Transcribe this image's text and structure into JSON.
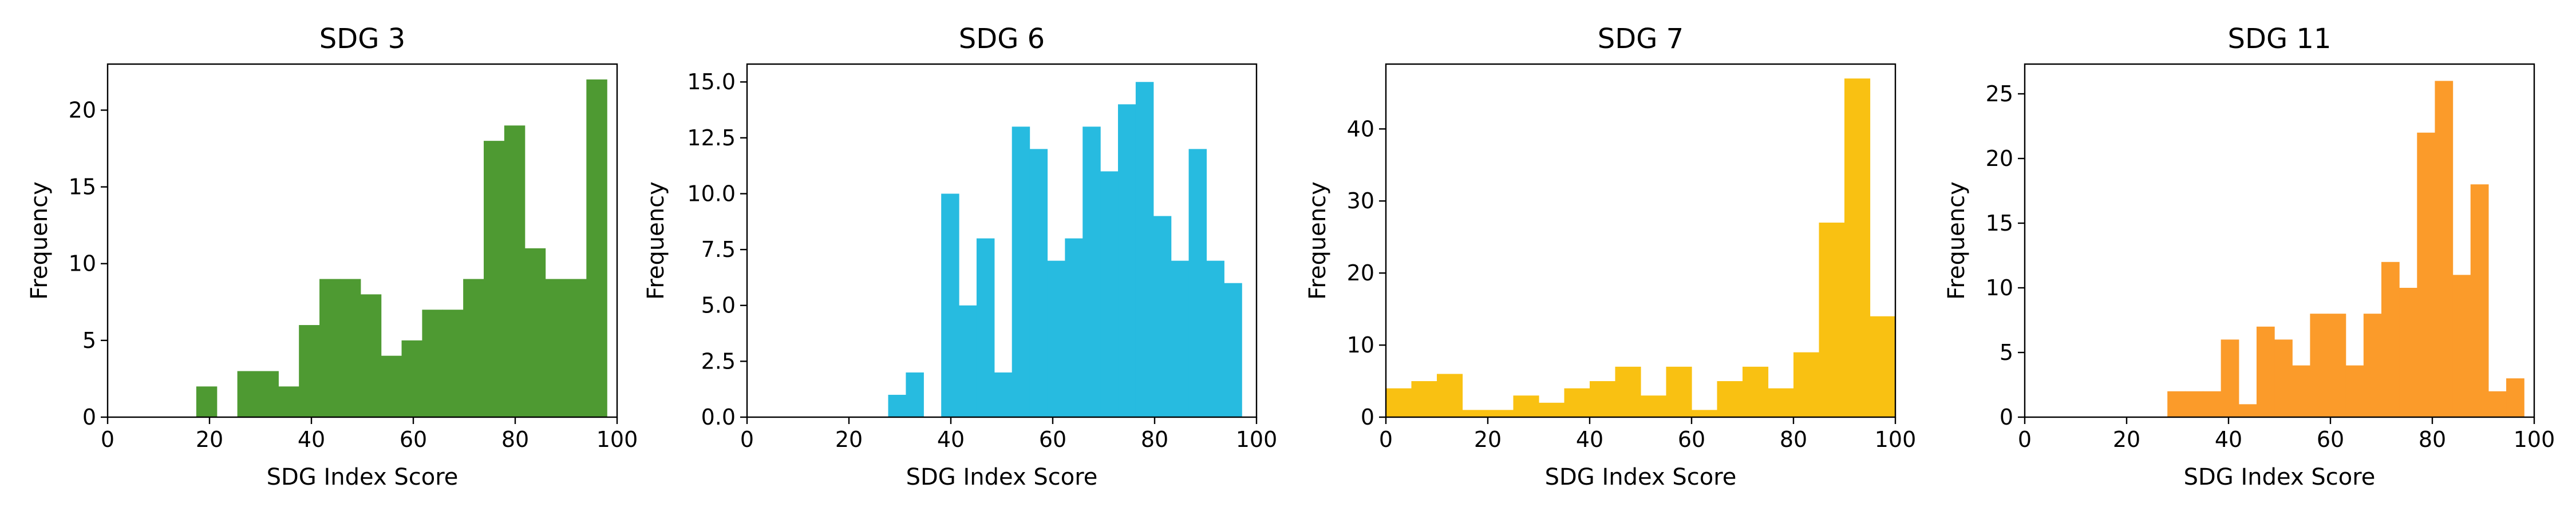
{
  "chart_data": [
    {
      "type": "bar",
      "title": "SDG 3",
      "xlabel": "SDG Index Score",
      "ylabel": "Frequency",
      "xlim": [
        0,
        100
      ],
      "ylim": [
        0,
        23
      ],
      "xticks": [
        0,
        20,
        40,
        60,
        80,
        100
      ],
      "yticks": [
        0,
        5,
        10,
        15,
        20
      ],
      "ytick_labels": [
        "0",
        "5",
        "10",
        "15",
        "20"
      ],
      "color": "#4e9a32",
      "bin_edges": [
        17.4,
        21.43,
        25.46,
        29.49,
        33.52,
        37.55,
        41.58,
        45.61,
        49.64,
        53.67,
        57.7,
        61.73,
        65.76,
        69.79,
        73.82,
        77.85,
        81.88,
        85.91,
        89.94,
        93.97,
        98.0
      ],
      "values": [
        2,
        0,
        3,
        3,
        2,
        6,
        9,
        9,
        8,
        4,
        5,
        7,
        7,
        9,
        18,
        19,
        11,
        9,
        9,
        22
      ]
    },
    {
      "type": "bar",
      "title": "SDG 6",
      "xlabel": "SDG Index Score",
      "ylabel": "Frequency",
      "xlim": [
        0,
        100
      ],
      "ylim": [
        0,
        15.8
      ],
      "xticks": [
        0,
        20,
        40,
        60,
        80,
        100
      ],
      "yticks": [
        0,
        2.5,
        5,
        7.5,
        10,
        12.5,
        15
      ],
      "ytick_labels": [
        "0.0",
        "2.5",
        "5.0",
        "7.5",
        "10.0",
        "12.5",
        "15.0"
      ],
      "color": "#27bbe0",
      "bin_edges": [
        27.7,
        31.17,
        34.64,
        38.11,
        41.58,
        45.05,
        48.52,
        51.99,
        55.46,
        58.93,
        62.4,
        65.87,
        69.34,
        72.81,
        76.28,
        79.75,
        83.22,
        86.69,
        90.16,
        93.63,
        97.1
      ],
      "values": [
        1,
        2,
        0,
        10,
        5,
        8,
        2,
        13,
        12,
        7,
        8,
        13,
        11,
        14,
        15,
        9,
        7,
        12,
        7,
        6
      ]
    },
    {
      "type": "bar",
      "title": "SDG 7",
      "xlabel": "SDG Index Score",
      "ylabel": "Frequency",
      "xlim": [
        0,
        100
      ],
      "ylim": [
        0,
        49
      ],
      "xticks": [
        0,
        20,
        40,
        60,
        80,
        100
      ],
      "yticks": [
        0,
        10,
        20,
        30,
        40
      ],
      "ytick_labels": [
        "0",
        "10",
        "20",
        "30",
        "40"
      ],
      "color": "#f9c112",
      "bin_edges": [
        0,
        5,
        10,
        15,
        20,
        25,
        30,
        35,
        40,
        45,
        50,
        55,
        60,
        65,
        70,
        75,
        80,
        85,
        90,
        95,
        100
      ],
      "values": [
        4,
        5,
        6,
        1,
        1,
        3,
        2,
        4,
        5,
        7,
        3,
        7,
        1,
        5,
        7,
        4,
        9,
        27,
        47,
        14
      ]
    },
    {
      "type": "bar",
      "title": "SDG 11",
      "xlabel": "SDG Index Score",
      "ylabel": "Frequency",
      "xlim": [
        0,
        100
      ],
      "ylim": [
        0,
        27.3
      ],
      "xticks": [
        0,
        20,
        40,
        60,
        80,
        100
      ],
      "yticks": [
        0,
        5,
        10,
        15,
        20,
        25
      ],
      "ytick_labels": [
        "0",
        "5",
        "10",
        "15",
        "20",
        "25"
      ],
      "color": "#fb9b2a",
      "bin_edges": [
        28.0,
        31.5,
        35.0,
        38.5,
        42.0,
        45.5,
        49.0,
        52.5,
        56.0,
        59.5,
        63.0,
        66.5,
        70.0,
        73.5,
        77.0,
        80.5,
        84.0,
        87.5,
        91.0,
        94.5,
        98.0
      ],
      "values": [
        2,
        2,
        2,
        6,
        1,
        7,
        6,
        4,
        8,
        8,
        4,
        8,
        12,
        10,
        22,
        26,
        11,
        18,
        2,
        3
      ]
    }
  ]
}
